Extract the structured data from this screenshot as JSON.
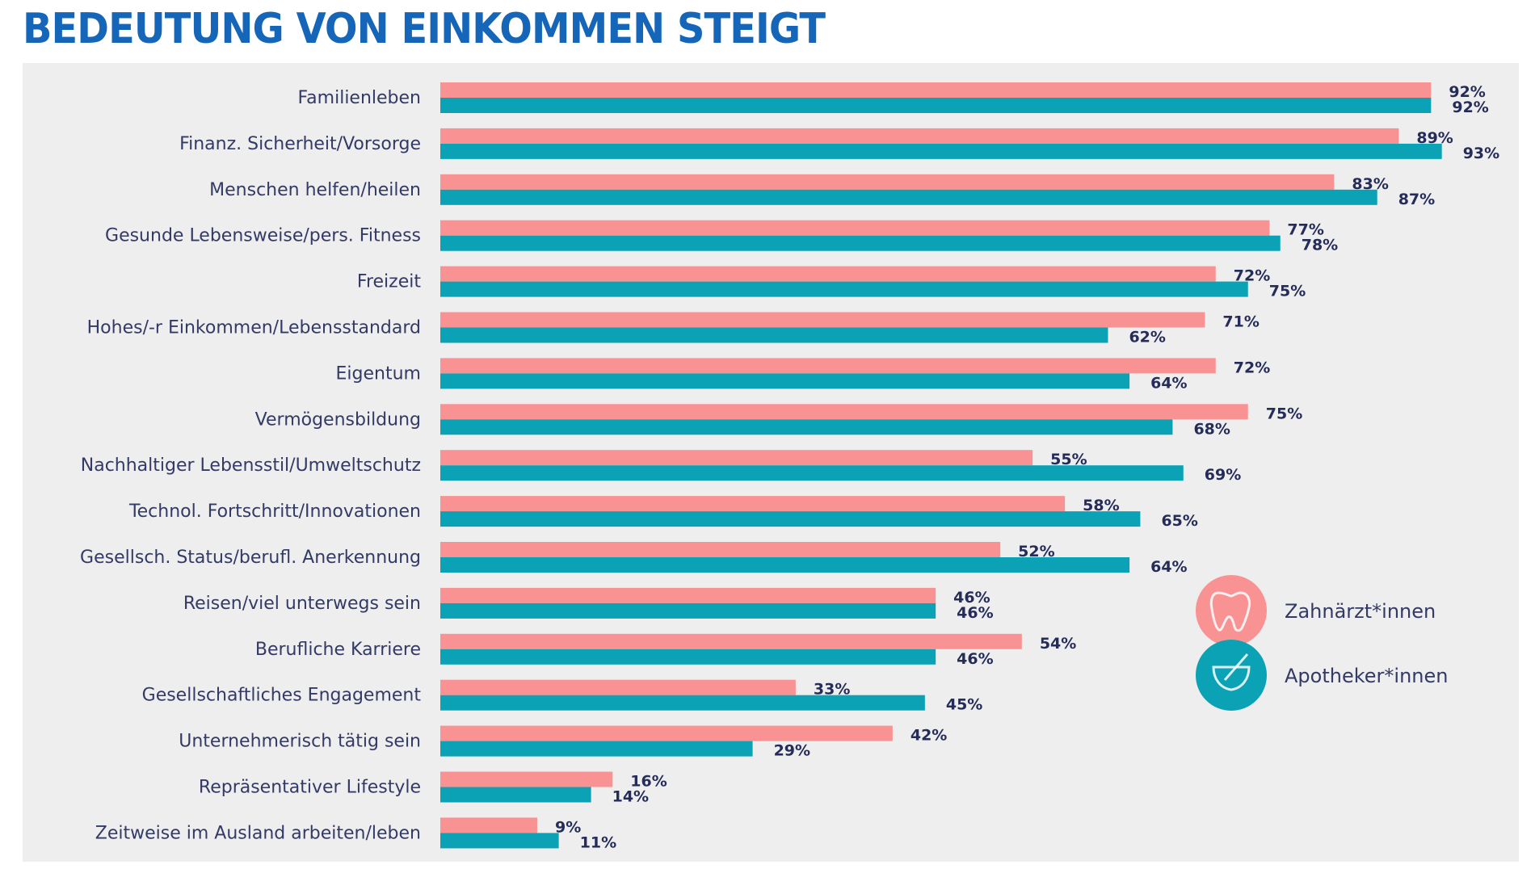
{
  "chart_data": {
    "type": "bar",
    "orientation": "horizontal",
    "title": "BEDEUTUNG VON EINKOMMEN STEIGT",
    "xlabel": "",
    "ylabel": "",
    "xlim": [
      0,
      100
    ],
    "grid": false,
    "value_suffix": "%",
    "categories": [
      "Familienleben",
      "Finanz. Sicherheit/Vorsorge",
      "Menschen helfen/heilen",
      "Gesunde Lebensweise/pers. Fitness",
      "Freizeit",
      "Hohes/-r Einkommen/Lebensstandard",
      "Eigentum",
      "Vermögensbildung",
      "Nachhaltiger Lebensstil/Umweltschutz",
      "Technol. Fortschritt/Innovationen",
      "Gesellsch. Status/berufl. Anerkennung",
      "Reisen/viel unterwegs sein",
      "Berufliche Karriere",
      "Gesellschaftliches Engagement",
      "Unternehmerisch tätig sein",
      "Repräsentativer Lifestyle",
      "Zeitweise im Ausland arbeiten/leben"
    ],
    "series": [
      {
        "name": "Zahnärzt*innen",
        "color": "#f99393",
        "icon": "tooth-icon",
        "values": [
          92,
          89,
          83,
          77,
          72,
          71,
          72,
          75,
          55,
          58,
          52,
          46,
          54,
          33,
          42,
          16,
          9
        ]
      },
      {
        "name": "Apotheker*innen",
        "color": "#0aa2b4",
        "icon": "mortar-pestle-icon",
        "values": [
          92,
          93,
          87,
          78,
          75,
          62,
          64,
          68,
          69,
          65,
          64,
          46,
          46,
          45,
          29,
          14,
          11
        ]
      }
    ],
    "legend": {
      "position": "bottom-right"
    }
  },
  "colors": {
    "title": "#1565b8",
    "panel_bg": "#eeeeee",
    "label_text": "#333a66"
  }
}
